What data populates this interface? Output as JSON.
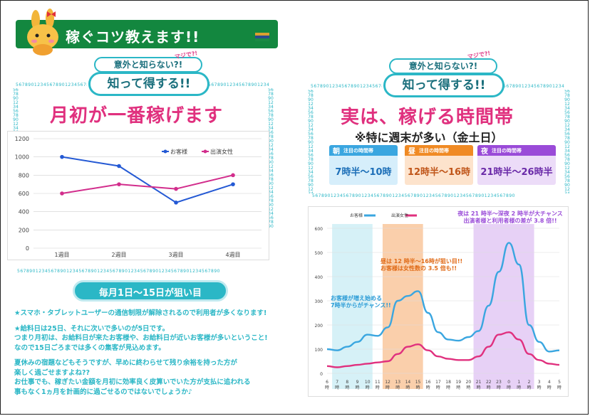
{
  "header": {
    "title": "稼ぐコツ教えます!!"
  },
  "left": {
    "badge_top": "意外と知らない?!",
    "badge_main": "知って得する!!",
    "majide": "マジで?!",
    "heading": "月初が一番稼げます",
    "strip": "毎月1日〜15日が狙い目",
    "numbers": "567890123456789012345678901234567890123456789012345678901234567890",
    "body": [
      "★スマホ・タブレットユーザーの通信制限が解除されるので利用者が多くなります!",
      "",
      "★給料日は25日、それに次いで多いのが5日です。",
      "つまり月初は、お給料日が来たお客様や、お給料日が近いお客様が多いということ!",
      "なので15日ごろまでは多くの集客が見込めます。",
      "",
      "夏休みの宿題などもそうですが、早めに終わらせて残り余裕を持った方が",
      "楽しく過ごせますよね??",
      "お仕事でも、稼ぎたい金額を月初に効率良く皮算いでいた方が支払に追われる",
      "事もなく1ヵ月を計画的に過ごせるのではないでしょうか♪"
    ]
  },
  "left_chart": {
    "type": "line",
    "categories": [
      "1週目",
      "2週目",
      "3週目",
      "4週目"
    ],
    "series": [
      {
        "name": "お客様",
        "values": [
          1000,
          900,
          500,
          700
        ],
        "color": "#2459d4"
      },
      {
        "name": "出演女性",
        "values": [
          600,
          700,
          650,
          800
        ],
        "color": "#d22d8c"
      }
    ],
    "yticks": [
      "0",
      "200",
      "400",
      "600",
      "800",
      "1000",
      "1200"
    ],
    "ylim": [
      0,
      1200
    ]
  },
  "right": {
    "badge_top": "意外と知らない?!",
    "badge_main": "知って得する!!",
    "majide": "マジで?!",
    "heading": "実は、稼げる時間帯",
    "subheading": "※特に週末が多い（金土日）",
    "cards": [
      {
        "tag": "朝",
        "label": "注目の時間帯",
        "time": "7時半〜10時",
        "color": "#3aa6e0",
        "bg": "#d6eefb",
        "text": "#1d6fb8"
      },
      {
        "tag": "昼",
        "label": "注目の時間帯",
        "time": "12時半〜16時",
        "color": "#f08a24",
        "bg": "#fde3cc",
        "text": "#c0561a"
      },
      {
        "tag": "夜",
        "label": "注目の時間帯",
        "time": "21時半〜26時半",
        "color": "#9a4bd8",
        "bg": "#ecdcf8",
        "text": "#6a2aa8"
      }
    ],
    "note_night": [
      "夜は 21 時半〜深夜 2 時半が大チャンス",
      "出演者様と利用者様の差が 3.8 倍!!"
    ],
    "note_day": [
      "昼は 12 時半〜16時が狙い目!!",
      "お客様は女性数の 3.5 倍も!!"
    ],
    "note_morning": [
      "お客様が増え始める",
      "7時半からがチャンス!!"
    ]
  },
  "right_chart": {
    "type": "line",
    "legend": [
      "お客様",
      "出演女性"
    ],
    "yticks": [
      "0",
      "100",
      "200",
      "300",
      "400",
      "500",
      "600"
    ],
    "ylim": [
      0,
      600
    ],
    "x": [
      "6",
      "7",
      "8",
      "9",
      "10",
      "11",
      "12",
      "13",
      "14",
      "15",
      "16",
      "17",
      "18",
      "19",
      "20",
      "21",
      "22",
      "23",
      "0",
      "1",
      "2",
      "3",
      "4",
      "5"
    ],
    "xunit": "時",
    "series": [
      {
        "name": "お客様",
        "color": "#3aa6e0",
        "values": [
          100,
          95,
          110,
          130,
          160,
          155,
          190,
          300,
          320,
          340,
          250,
          170,
          140,
          135,
          150,
          175,
          280,
          420,
          540,
          450,
          200,
          130,
          90,
          95
        ]
      },
      {
        "name": "出演女性",
        "color": "#e0307e",
        "values": [
          30,
          25,
          30,
          35,
          40,
          45,
          50,
          80,
          110,
          120,
          95,
          70,
          60,
          55,
          55,
          70,
          110,
          160,
          170,
          140,
          80,
          55,
          40,
          35
        ]
      }
    ],
    "highlights": [
      {
        "from": 1,
        "to": 4,
        "color": "#cfeef6"
      },
      {
        "from": 6,
        "to": 9,
        "color": "#f9c79c"
      },
      {
        "from": 15,
        "to": 20,
        "color": "#e3c9f4"
      }
    ]
  }
}
